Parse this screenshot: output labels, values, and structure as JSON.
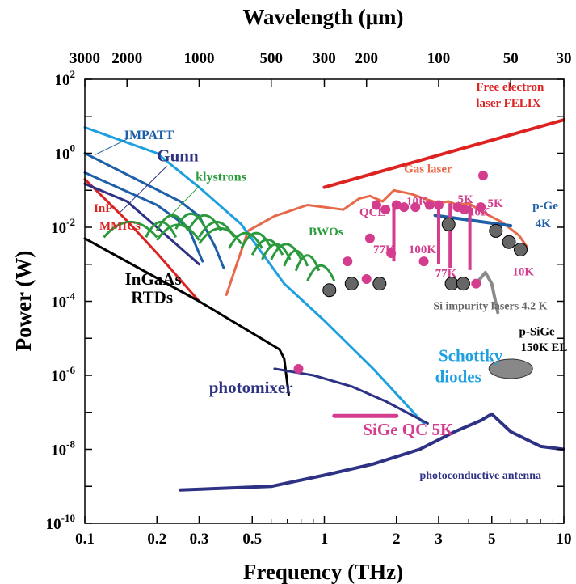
{
  "chart_data": {
    "type": "line",
    "x_axis": {
      "title": "Frequency (THz)",
      "scale": "log",
      "range": [
        0.1,
        10
      ],
      "ticks": [
        {
          "value": 0.1,
          "label": "0.1"
        },
        {
          "value": 0.2,
          "label": "0.2"
        },
        {
          "value": 0.3,
          "label": "0.3"
        },
        {
          "value": 0.5,
          "label": "0.5"
        },
        {
          "value": 1,
          "label": "1"
        },
        {
          "value": 2,
          "label": "2"
        },
        {
          "value": 3,
          "label": "3"
        },
        {
          "value": 5,
          "label": "5"
        },
        {
          "value": 10,
          "label": "10"
        }
      ]
    },
    "top_axis": {
      "title": "Wavelength (μm)",
      "ticks": [
        {
          "value": 0.1,
          "label": "3000"
        },
        {
          "value": 0.15,
          "label": "2000"
        },
        {
          "value": 0.3,
          "label": "1000"
        },
        {
          "value": 0.6,
          "label": "500"
        },
        {
          "value": 1,
          "label": "300"
        },
        {
          "value": 1.5,
          "label": "200"
        },
        {
          "value": 3,
          "label": "100"
        },
        {
          "value": 6,
          "label": "50"
        },
        {
          "value": 10,
          "label": "30"
        }
      ]
    },
    "y_axis": {
      "title": "Power (W)",
      "scale": "log",
      "range": [
        1e-10,
        100
      ],
      "ticks": [
        {
          "value": 100,
          "base": "10",
          "exp": "2"
        },
        {
          "value": 1,
          "base": "10",
          "exp": "0"
        },
        {
          "value": 0.01,
          "base": "10",
          "exp": "-2"
        },
        {
          "value": 0.0001,
          "base": "10",
          "exp": "-4"
        },
        {
          "value": 1e-06,
          "base": "10",
          "exp": "-6"
        },
        {
          "value": 1e-08,
          "base": "10",
          "exp": "-8"
        },
        {
          "value": 1e-10,
          "base": "10",
          "exp": "-10"
        }
      ]
    },
    "series": [
      {
        "name": "Free electron laser FELIX",
        "color": "#dd2222",
        "width": 4,
        "points": [
          [
            1,
            0.12
          ],
          [
            10,
            8
          ]
        ]
      },
      {
        "name": "Gas laser",
        "color": "#e8694a",
        "width": 3,
        "points": [
          [
            0.39,
            0.00015
          ],
          [
            0.48,
            0.008
          ],
          [
            0.62,
            0.02
          ],
          [
            0.85,
            0.04
          ],
          [
            1.0,
            0.035
          ],
          [
            1.2,
            0.03
          ],
          [
            1.4,
            0.06
          ],
          [
            1.55,
            0.07
          ],
          [
            1.75,
            0.05
          ],
          [
            1.95,
            0.1
          ],
          [
            2.3,
            0.08
          ],
          [
            2.6,
            0.06
          ],
          [
            3.0,
            0.045
          ],
          [
            3.3,
            0.05
          ],
          [
            3.6,
            0.04
          ],
          [
            4.0,
            0.045
          ],
          [
            4.6,
            0.025
          ],
          [
            5.5,
            0.014
          ],
          [
            6.5,
            0.006
          ],
          [
            7.0,
            0.003
          ]
        ]
      },
      {
        "name": "IMPATT",
        "color": "#1f5fa8",
        "width": 3,
        "points": [
          [
            0.1,
            1
          ],
          [
            0.25,
            0.05
          ],
          [
            0.3,
            0.02
          ],
          [
            0.35,
            0.003
          ],
          [
            0.38,
            0.0008
          ]
        ]
      },
      {
        "name": "IMPATT-lower",
        "color": "#1f5fa8",
        "width": 3,
        "points": [
          [
            0.1,
            0.3
          ],
          [
            0.2,
            0.04
          ],
          [
            0.27,
            0.01
          ],
          [
            0.31,
            0.0012
          ]
        ]
      },
      {
        "name": "Schottky diodes",
        "color": "#1ea0e0",
        "width": 3,
        "points": [
          [
            0.1,
            5
          ],
          [
            0.2,
            1
          ],
          [
            0.3,
            0.12
          ],
          [
            0.45,
            0.012
          ],
          [
            0.55,
            0.002
          ],
          [
            0.68,
            0.0003
          ],
          [
            1.0,
            3e-05
          ],
          [
            1.6,
            1.5e-06
          ],
          [
            2.6,
            5e-08
          ]
        ]
      },
      {
        "name": "InP MMICs",
        "color": "#dd2222",
        "width": 3,
        "points": [
          [
            0.1,
            0.2
          ],
          [
            0.15,
            0.015
          ],
          [
            0.2,
            0.002
          ],
          [
            0.3,
            0.0001
          ]
        ]
      },
      {
        "name": "Gunn",
        "color": "#2e3285",
        "width": 3,
        "points": [
          [
            0.1,
            0.15
          ],
          [
            0.15,
            0.05
          ],
          [
            0.2,
            0.01
          ],
          [
            0.3,
            0.001
          ]
        ]
      },
      {
        "name": "InGaAs RTDs",
        "color": "#000000",
        "width": 3,
        "points": [
          [
            0.1,
            0.005
          ],
          [
            0.3,
            0.0001
          ],
          [
            0.65,
            5e-06
          ],
          [
            0.68,
            2.8e-06
          ],
          [
            0.71,
            3e-07
          ]
        ]
      },
      {
        "name": "photomixer",
        "color": "#2e3285",
        "width": 3,
        "points": [
          [
            0.62,
            1.5e-06
          ],
          [
            0.9,
            1e-06
          ],
          [
            1.3,
            5e-07
          ],
          [
            1.8,
            2e-07
          ],
          [
            2.7,
            5e-08
          ]
        ]
      },
      {
        "name": "photoconductive antenna",
        "color": "#2e3285",
        "width": 4,
        "points": [
          [
            0.25,
            8e-10
          ],
          [
            0.6,
            1e-09
          ],
          [
            1.0,
            2e-09
          ],
          [
            1.6,
            4e-09
          ],
          [
            2.5,
            1e-08
          ],
          [
            3.5,
            3e-08
          ],
          [
            4.5,
            6e-08
          ],
          [
            5.0,
            9e-08
          ],
          [
            6.0,
            3e-08
          ],
          [
            8.0,
            1.2e-08
          ],
          [
            10,
            1e-08
          ]
        ]
      },
      {
        "name": "p-Ge 4K",
        "color": "#1f5fa8",
        "width": 4,
        "points": [
          [
            2.9,
            0.021
          ],
          [
            6.0,
            0.011
          ]
        ]
      },
      {
        "name": "SiGe QC 5K",
        "color": "#d43c8e",
        "width": 5,
        "points": [
          [
            1.1,
            8e-08
          ],
          [
            2.0,
            8e-08
          ]
        ]
      },
      {
        "name": "Si impurity lasers 4.2 K",
        "color": "#8a8a8a",
        "width": 4,
        "points": [
          [
            4.3,
            0.0003
          ],
          [
            4.7,
            0.0006
          ],
          [
            5.0,
            0.0003
          ],
          [
            5.3,
            5e-05
          ]
        ]
      }
    ],
    "arcs": [
      {
        "series": "klystrons",
        "color": "#2a9a3c",
        "ranges": [
          [
            0.18,
            0.24,
            0.012
          ],
          [
            0.2,
            0.27,
            0.018
          ],
          [
            0.24,
            0.32,
            0.02
          ],
          [
            0.27,
            0.37,
            0.018
          ],
          [
            0.3,
            0.42,
            0.012
          ]
        ]
      },
      {
        "series": "BWOs",
        "color": "#2a9a3c",
        "ranges": [
          [
            0.12,
            0.2,
            0.012
          ],
          [
            0.2,
            0.3,
            0.01
          ],
          [
            0.3,
            0.45,
            0.008
          ],
          [
            0.4,
            0.55,
            0.006
          ],
          [
            0.45,
            0.6,
            0.006
          ],
          [
            0.5,
            0.67,
            0.004
          ],
          [
            0.55,
            0.72,
            0.003
          ],
          [
            0.6,
            0.8,
            0.003
          ],
          [
            0.68,
            0.85,
            0.002
          ],
          [
            0.76,
            0.95,
            0.0015
          ],
          [
            0.85,
            1.1,
            0.0008
          ]
        ]
      }
    ],
    "qcl_points": [
      [
        1.25,
        0.0012
      ],
      [
        1.5,
        0.0004
      ],
      [
        1.55,
        0.005
      ],
      [
        1.65,
        0.04
      ],
      [
        1.8,
        0.03
      ],
      [
        1.9,
        0.002
      ],
      [
        2.0,
        0.04
      ],
      [
        2.15,
        0.035
      ],
      [
        2.4,
        0.035
      ],
      [
        2.75,
        0.04
      ],
      [
        3.0,
        0.04
      ],
      [
        3.6,
        0.035
      ],
      [
        3.85,
        0.03
      ],
      [
        4.5,
        0.035
      ],
      [
        4.6,
        0.25
      ],
      [
        4.3,
        0.0003
      ],
      [
        2.6,
        0.0012
      ],
      [
        0.78,
        1.5e-06
      ]
    ],
    "qcl_bars": [
      [
        1.95,
        0.0012,
        0.04
      ],
      [
        3.0,
        0.001,
        0.045
      ],
      [
        3.35,
        0.0008,
        0.045
      ],
      [
        4.05,
        0.0007,
        0.04
      ]
    ],
    "si_points": [
      [
        1.05,
        0.0002
      ],
      [
        1.3,
        0.0003
      ],
      [
        1.7,
        0.0003
      ],
      [
        3.4,
        0.0003
      ],
      [
        3.8,
        0.0003
      ],
      [
        5.2,
        0.008
      ],
      [
        5.9,
        0.004
      ],
      [
        6.6,
        0.0025
      ],
      [
        3.3,
        0.012
      ]
    ],
    "ellipse": {
      "x": 6.0,
      "y": 1.5e-06,
      "color": "#888888"
    },
    "labels": [
      {
        "text": "Free electron",
        "x": 4.3,
        "y": 50,
        "color": "#dd2222",
        "size": 15
      },
      {
        "text": "laser FELIX",
        "x": 4.3,
        "y": 18,
        "color": "#dd2222",
        "size": 15
      },
      {
        "text": "IMPATT",
        "x": 0.146,
        "y": 2.4,
        "color": "#1f5fa8",
        "size": 16
      },
      {
        "text": "Gunn",
        "x": 0.2,
        "y": 0.6,
        "color": "#2e3285",
        "size": 21
      },
      {
        "text": "klystrons",
        "x": 0.29,
        "y": 0.18,
        "color": "#2a9a3c",
        "size": 16
      },
      {
        "text": "Gas laser",
        "x": 2.15,
        "y": 0.3,
        "color": "#e8694a",
        "size": 15
      },
      {
        "text": "InP",
        "x": 0.109,
        "y": 0.026,
        "color": "#dd2222",
        "size": 15
      },
      {
        "text": "MMICs",
        "x": 0.115,
        "y": 0.0085,
        "color": "#dd2222",
        "size": 15
      },
      {
        "text": "QCL",
        "x": 1.4,
        "y": 0.02,
        "color": "#d43c8e",
        "size": 15
      },
      {
        "text": "BWOs",
        "x": 0.86,
        "y": 0.006,
        "color": "#2a9a3c",
        "size": 15
      },
      {
        "text": "77K",
        "x": 1.6,
        "y": 0.002,
        "color": "#d43c8e",
        "size": 15
      },
      {
        "text": "100K",
        "x": 2.25,
        "y": 0.002,
        "color": "#d43c8e",
        "size": 15
      },
      {
        "text": "77K",
        "x": 2.9,
        "y": 0.00045,
        "color": "#d43c8e",
        "size": 15
      },
      {
        "text": "10K",
        "x": 6.1,
        "y": 0.0005,
        "color": "#d43c8e",
        "size": 15
      },
      {
        "text": "5K",
        "x": 3.6,
        "y": 0.045,
        "color": "#d43c8e",
        "size": 15
      },
      {
        "text": "5K",
        "x": 4.8,
        "y": 0.035,
        "color": "#d43c8e",
        "size": 15
      },
      {
        "text": "10K",
        "x": 2.2,
        "y": 0.04,
        "color": "#d43c8e",
        "size": 15
      },
      {
        "text": "10K",
        "x": 4.0,
        "y": 0.021,
        "color": "#d43c8e",
        "size": 15
      },
      {
        "text": "p-Ge",
        "x": 7.4,
        "y": 0.03,
        "color": "#1f5fa8",
        "size": 15
      },
      {
        "text": "4K",
        "x": 7.6,
        "y": 0.01,
        "color": "#1f5fa8",
        "size": 15
      },
      {
        "text": "InGaAs",
        "x": 0.147,
        "y": 0.00028,
        "color": "#000000",
        "size": 21
      },
      {
        "text": "RTDs",
        "x": 0.156,
        "y": 9e-05,
        "color": "#000000",
        "size": 21
      },
      {
        "text": "Si impurity lasers 4.2 K",
        "x": 2.85,
        "y": 6e-05,
        "color": "#666666",
        "size": 14
      },
      {
        "text": "p-SiGe",
        "x": 6.5,
        "y": 1.2e-05,
        "color": "#000000",
        "size": 15
      },
      {
        "text": "150K EL",
        "x": 6.6,
        "y": 4.5e-06,
        "color": "#000000",
        "size": 15
      },
      {
        "text": "Schottky",
        "x": 3.0,
        "y": 2.4e-06,
        "color": "#1ea0e0",
        "size": 21
      },
      {
        "text": "diodes",
        "x": 2.9,
        "y": 6.5e-07,
        "color": "#1ea0e0",
        "size": 21
      },
      {
        "text": "photomixer",
        "x": 0.33,
        "y": 3.3e-07,
        "color": "#2e3285",
        "size": 21
      },
      {
        "text": "SiGe QC 5K",
        "x": 1.45,
        "y": 2.4e-08,
        "color": "#d43c8e",
        "size": 21
      },
      {
        "text": "photoconductive antenna",
        "x": 2.5,
        "y": 1.6e-09,
        "color": "#2e3285",
        "size": 14
      }
    ]
  }
}
